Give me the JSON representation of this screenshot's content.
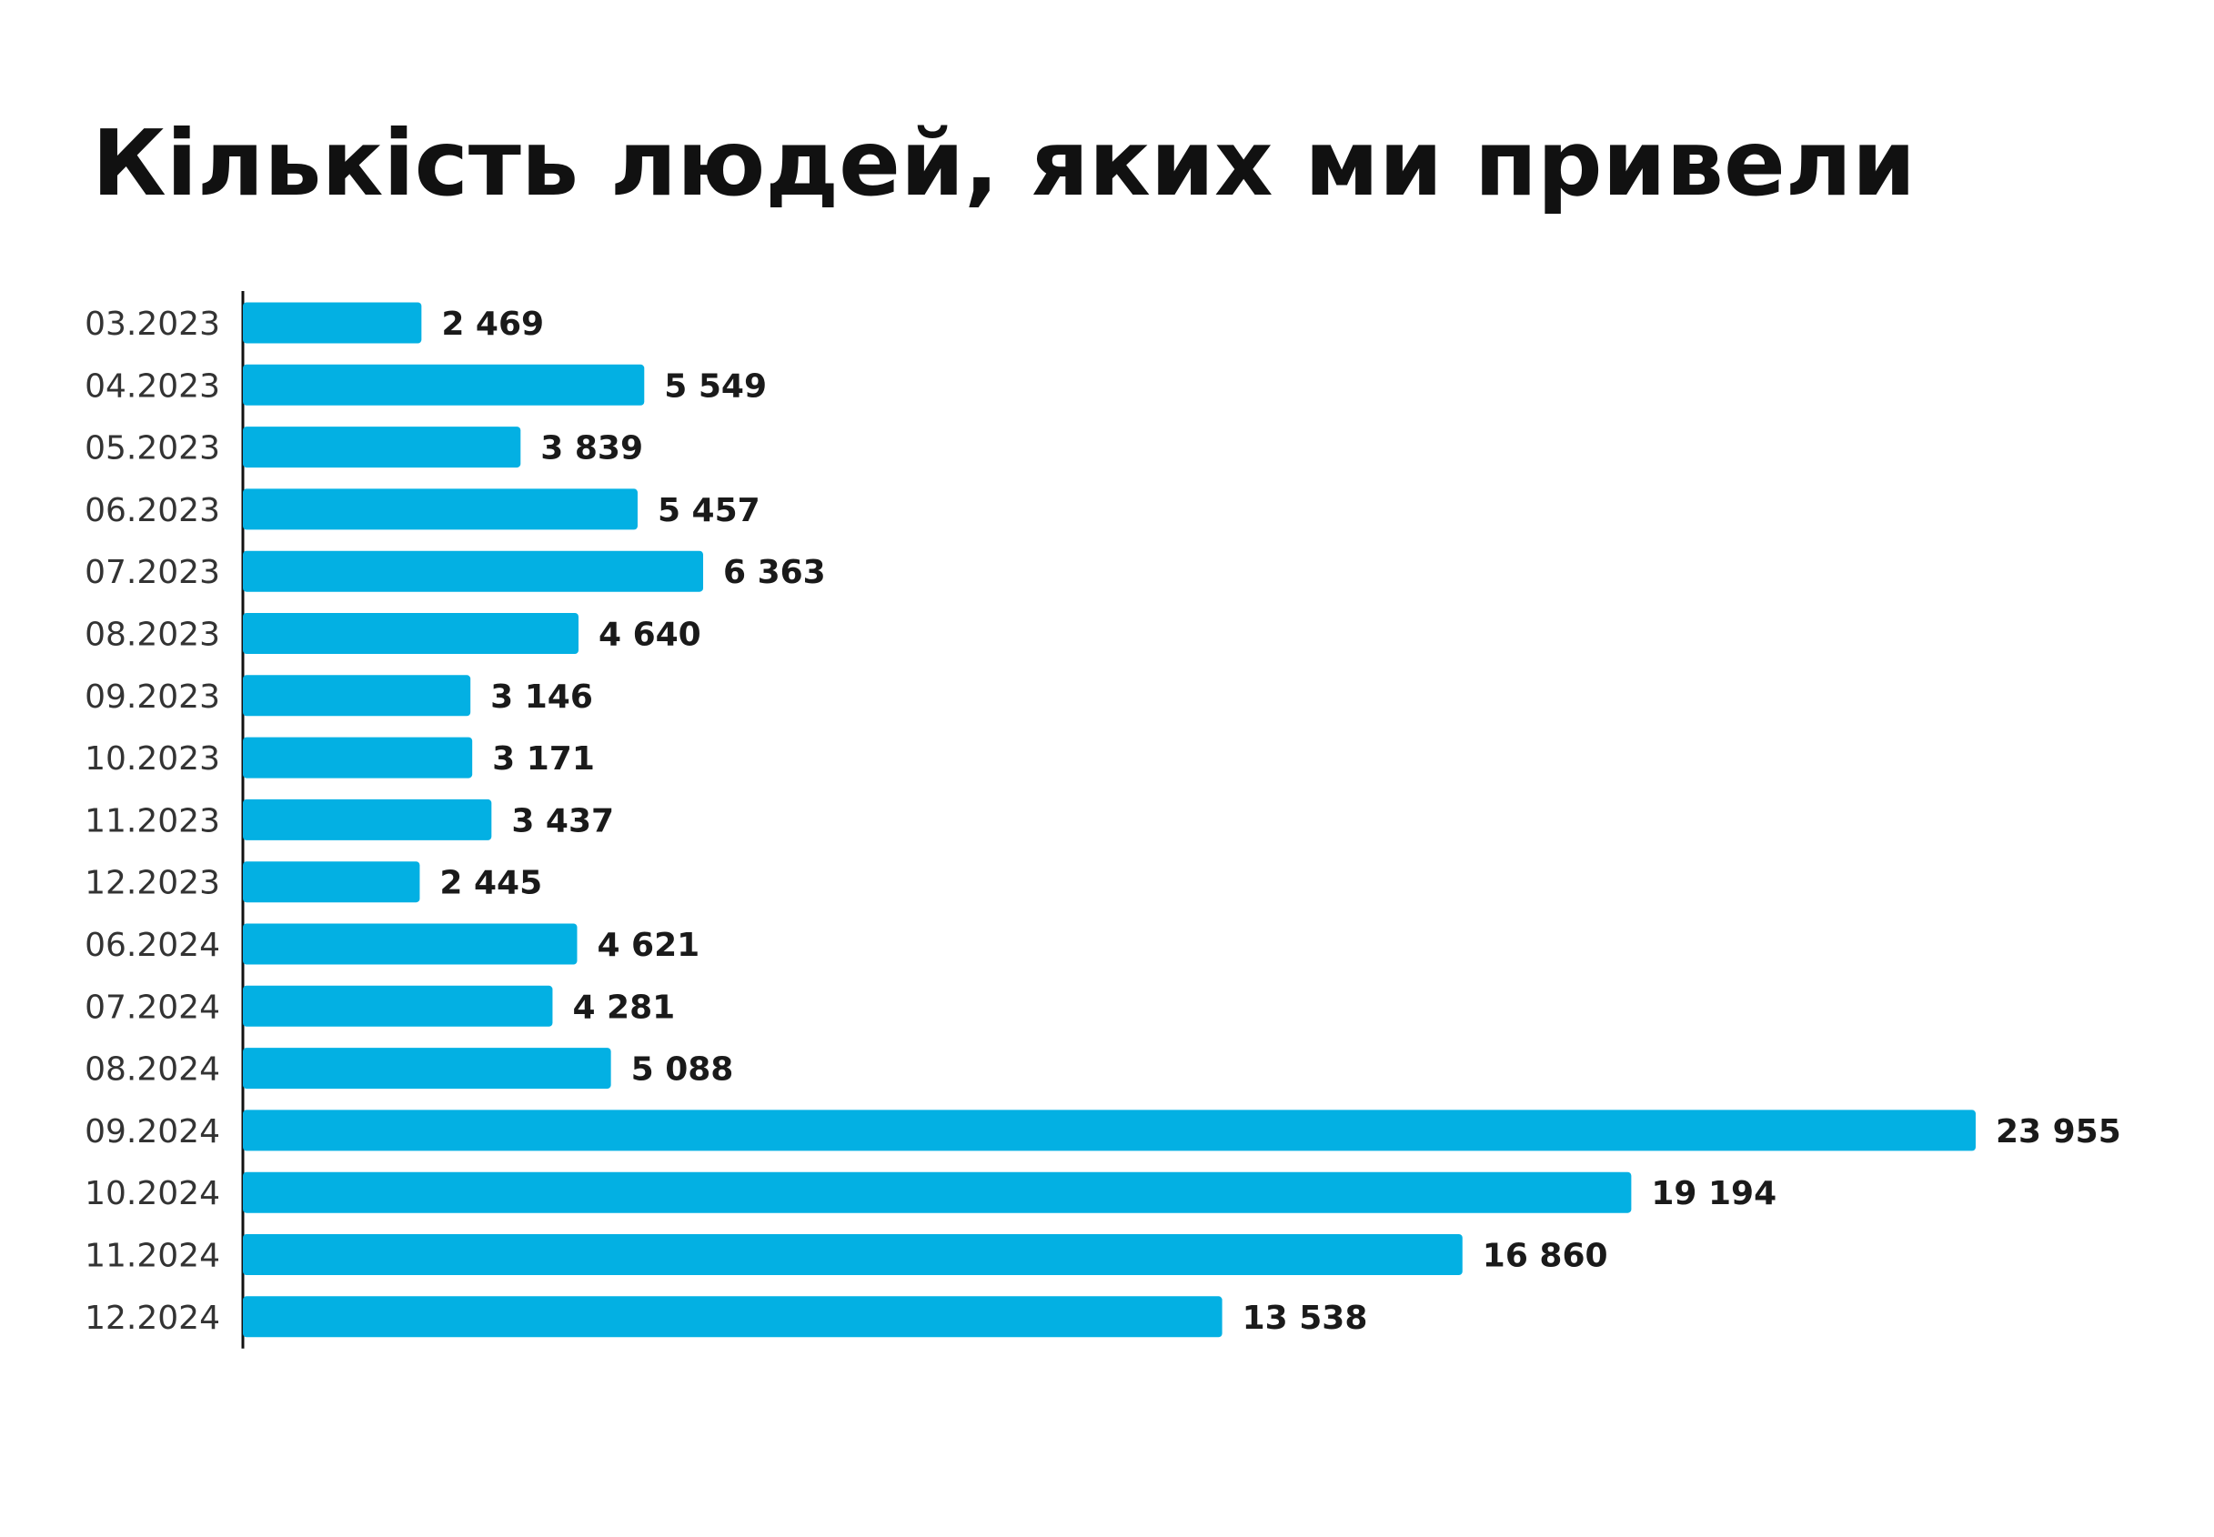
{
  "chart_data": {
    "type": "bar",
    "orientation": "horizontal",
    "title": "Кількість людей, яких ми привели",
    "xlabel": "",
    "ylabel": "",
    "grid": false,
    "legend": "none",
    "bar_color": "#03B0E3",
    "xlim": [
      0,
      24000
    ],
    "categories": [
      "03.2023",
      "04.2023",
      "05.2023",
      "06.2023",
      "07.2023",
      "08.2023",
      "09.2023",
      "10.2023",
      "11.2023",
      "12.2023",
      "06.2024",
      "07.2024",
      "08.2024",
      "09.2024",
      "10.2024",
      "11.2024",
      "12.2024"
    ],
    "values": [
      2469,
      5549,
      3839,
      5457,
      6363,
      4640,
      3146,
      3171,
      3437,
      2445,
      4621,
      4281,
      5088,
      23955,
      19194,
      16860,
      13538
    ],
    "value_labels": [
      "2 469",
      "5 549",
      "3 839",
      "5 457",
      "6 363",
      "4 640",
      "3 146",
      "3 171",
      "3 437",
      "2 445",
      "4 621",
      "4 281",
      "5 088",
      "23 955",
      "19 194",
      "16 860",
      "13 538"
    ]
  }
}
